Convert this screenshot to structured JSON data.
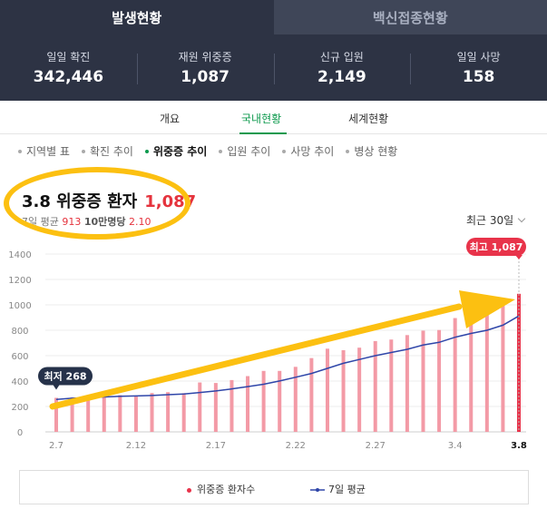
{
  "tabs": [
    {
      "label": "발생현황",
      "active": true
    },
    {
      "label": "백신접종현황",
      "active": false
    }
  ],
  "stats": [
    {
      "label": "일일 확진",
      "value": "342,446"
    },
    {
      "label": "재원 위중증",
      "value": "1,087"
    },
    {
      "label": "신규 입원",
      "value": "2,149"
    },
    {
      "label": "일일 사망",
      "value": "158"
    }
  ],
  "subtabs": [
    {
      "label": "개요",
      "active": false
    },
    {
      "label": "국내현황",
      "active": true
    },
    {
      "label": "세계현황",
      "active": false
    }
  ],
  "menu": [
    {
      "label": "지역별 표",
      "active": false
    },
    {
      "label": "확진 추이",
      "active": false
    },
    {
      "label": "위중증 추이",
      "active": true
    },
    {
      "label": "입원 추이",
      "active": false
    },
    {
      "label": "사망 추이",
      "active": false
    },
    {
      "label": "병상 현황",
      "active": false
    }
  ],
  "header": {
    "title": "3.8 위중증 환자",
    "value": "1,087",
    "avg_label": "7일 평균",
    "avg_value": "913",
    "per_label": "10만명당",
    "per_value": "2.10"
  },
  "period": {
    "label": "최근 30일"
  },
  "legend": {
    "bar_label": "위중증 환자수",
    "line_label": "7일 평균"
  },
  "colors": {
    "bar": "#f39aa6",
    "bar_highlight": "#e8334a",
    "line": "#2f46a9",
    "tooltip_dark": "#26324a",
    "tooltip_red": "#e8334a",
    "annotation": "#fcc011"
  },
  "chart_data": {
    "type": "bar",
    "ylim": [
      0,
      1400
    ],
    "yticks": [
      0,
      200,
      400,
      600,
      800,
      1000,
      1200,
      1400
    ],
    "x_tick_labels": [
      "2.7",
      "2.12",
      "2.17",
      "2.22",
      "2.27",
      "3.4",
      "3.8"
    ],
    "categories": [
      "2.7",
      "2.8",
      "2.9",
      "2.10",
      "2.11",
      "2.12",
      "2.13",
      "2.14",
      "2.15",
      "2.16",
      "2.17",
      "2.18",
      "2.19",
      "2.20",
      "2.21",
      "2.22",
      "2.23",
      "2.24",
      "2.25",
      "2.26",
      "2.27",
      "2.28",
      "3.1",
      "3.2",
      "3.3",
      "3.4",
      "3.5",
      "3.6",
      "3.7",
      "3.8"
    ],
    "series": [
      {
        "name": "위중증 환자수",
        "type": "bar",
        "values": [
          268,
          272,
          288,
          280,
          289,
          285,
          306,
          313,
          305,
          389,
          385,
          408,
          439,
          480,
          480,
          512,
          581,
          655,
          643,
          663,
          715,
          727,
          762,
          797,
          802,
          896,
          885,
          955,
          1007,
          1087
        ]
      },
      {
        "name": "7일 평균",
        "type": "line",
        "values": [
          255,
          265,
          270,
          275,
          280,
          283,
          287,
          293,
          298,
          310,
          322,
          338,
          356,
          375,
          401,
          430,
          460,
          500,
          540,
          570,
          600,
          625,
          650,
          684,
          705,
          745,
          775,
          800,
          840,
          913
        ]
      }
    ],
    "min_label": "최저 268",
    "max_label": "최고 1,087"
  }
}
